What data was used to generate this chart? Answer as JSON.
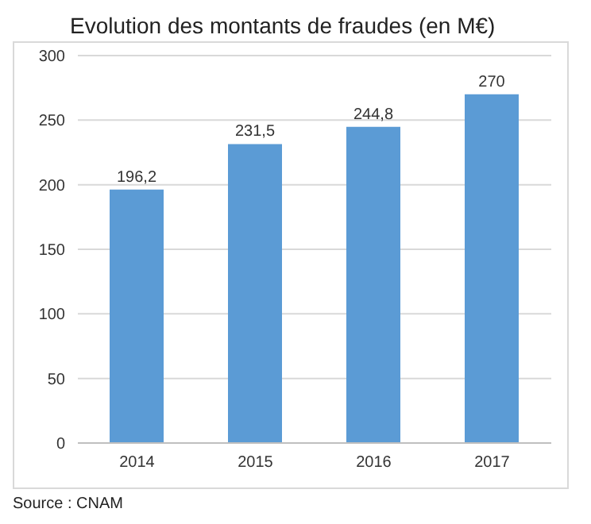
{
  "chart_data": {
    "type": "bar",
    "title": "Evolution des montants de fraudes (en M€)",
    "categories": [
      "2014",
      "2015",
      "2016",
      "2017"
    ],
    "values": [
      196.2,
      231.5,
      244.8,
      270
    ],
    "value_labels": [
      "196,2",
      "231,5",
      "244,8",
      "270"
    ],
    "color": "#5b9bd5",
    "ylim": [
      0,
      300
    ],
    "yticks": [
      0,
      50,
      100,
      150,
      200,
      250,
      300
    ],
    "grid": "y",
    "annotations": [
      "Source : CNAM"
    ]
  }
}
